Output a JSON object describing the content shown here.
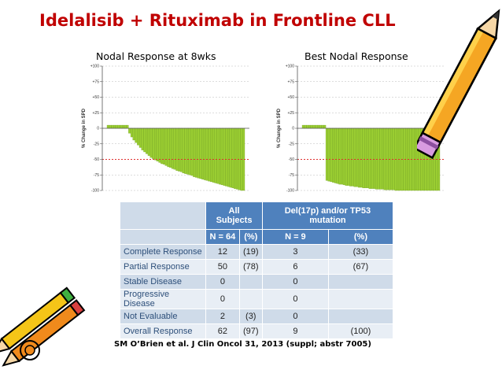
{
  "slide": {
    "title": "Idelalisib + Rituximab in Frontline CLL",
    "chart1_label": "Nodal Response at 8wks",
    "chart2_label": "Best Nodal Response",
    "citation": "SM O’Brien et al. J Clin Oncol 31, 2013 (suppl; abstr 7005)"
  },
  "colors": {
    "title": "#c00000",
    "bar_fill": "#9acd32",
    "bar_stroke": "#6e9e1e",
    "ref_line": "#e03030",
    "table_header": "#4f81bd"
  },
  "icons": {
    "pencil_top_right": "pencil-icon",
    "pencils_bottom_left": "pencils-icon"
  },
  "chart_data": [
    {
      "type": "bar",
      "ylabel": "% Change in SPD",
      "ylim": [
        -100,
        100
      ],
      "yticks": [
        100,
        75,
        50,
        25,
        0,
        -25,
        -50,
        -75,
        -100
      ],
      "ytick_labels": [
        "+100",
        "+75",
        "+50",
        "+25",
        "0",
        "-25",
        "-50",
        "-75",
        "-100"
      ],
      "reference_line": -50,
      "values": [
        5,
        5,
        5,
        5,
        5,
        5,
        5,
        5,
        5,
        5,
        -8,
        -14,
        -19,
        -23,
        -27,
        -31,
        -35,
        -38,
        -41,
        -44,
        -47,
        -49,
        -51,
        -53,
        -55,
        -57,
        -58,
        -60,
        -62,
        -63,
        -65,
        -66,
        -68,
        -69,
        -70,
        -72,
        -73,
        -74,
        -75,
        -76,
        -78,
        -79,
        -80,
        -81,
        -82,
        -83,
        -84,
        -85,
        -86,
        -87,
        -88,
        -89,
        -90,
        -91,
        -92,
        -93,
        -94,
        -95,
        -96,
        -97,
        -98,
        -99,
        -100,
        -100
      ]
    },
    {
      "type": "bar",
      "ylabel": "% Change in SPD",
      "ylim": [
        -100,
        100
      ],
      "yticks": [
        100,
        75,
        50,
        25,
        0,
        -25,
        -50,
        -75,
        -100
      ],
      "ytick_labels": [
        "+100",
        "+75",
        "+50",
        "+25",
        "0",
        "-25",
        "-50",
        "-75",
        "-100"
      ],
      "reference_line": -50,
      "values": [
        5,
        5,
        5,
        5,
        5,
        5,
        5,
        5,
        5,
        5,
        5,
        -84,
        -85,
        -86,
        -87,
        -88,
        -89,
        -90,
        -90,
        -91,
        -92,
        -92,
        -93,
        -93,
        -94,
        -94,
        -95,
        -95,
        -96,
        -96,
        -96,
        -97,
        -97,
        -97,
        -98,
        -98,
        -98,
        -98,
        -99,
        -99,
        -99,
        -99,
        -99,
        -100,
        -100,
        -100,
        -100,
        -100,
        -100,
        -100,
        -100,
        -100,
        -100,
        -100,
        -100,
        -100,
        -100,
        -100,
        -100,
        -100,
        -100,
        -100,
        -100,
        -100
      ]
    }
  ],
  "table": {
    "header_all": "All Subjects",
    "header_del": "Del(17p) and/or TP53 mutation",
    "sub_headers": [
      "N = 64",
      "(%)",
      "N = 9",
      "(%)"
    ],
    "rows": [
      {
        "label": "Complete Response",
        "n1": "12",
        "p1": "(19)",
        "n2": "3",
        "p2": "(33)"
      },
      {
        "label": "Partial Response",
        "n1": "50",
        "p1": "(78)",
        "n2": "6",
        "p2": "(67)"
      },
      {
        "label": "Stable Disease",
        "n1": "0",
        "p1": "",
        "n2": "0",
        "p2": ""
      },
      {
        "label": "Progressive Disease",
        "n1": "0",
        "p1": "",
        "n2": "0",
        "p2": ""
      },
      {
        "label": "Not Evaluable",
        "n1": "2",
        "p1": "(3)",
        "n2": "0",
        "p2": ""
      },
      {
        "label": "Overall Response",
        "n1": "62",
        "p1": "(97)",
        "n2": "9",
        "p2": "(100)"
      }
    ]
  }
}
